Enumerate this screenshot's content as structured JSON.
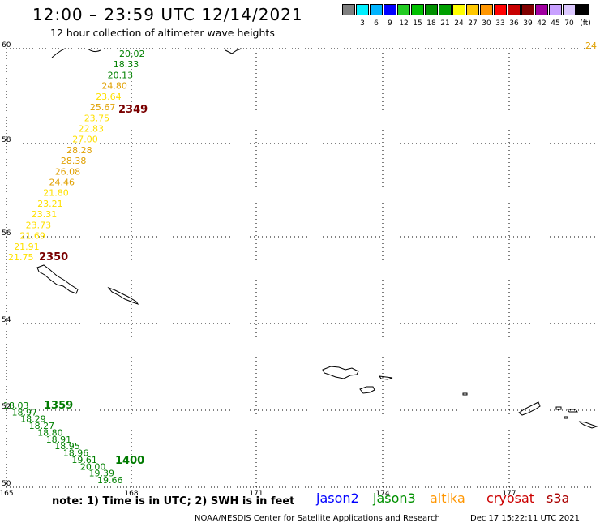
{
  "header": {
    "title": "12:00 – 23:59 UTC 12/14/2021",
    "subtitle": "12 hour collection of altimeter wave heights"
  },
  "scale": {
    "unit": "(ft)",
    "swatches": [
      {
        "color": "#7f7f7f",
        "label": ""
      },
      {
        "color": "#00f0ff",
        "label": "3"
      },
      {
        "color": "#00b4ff",
        "label": "6"
      },
      {
        "color": "#0000ff",
        "label": "9"
      },
      {
        "color": "#22cc22",
        "label": "12"
      },
      {
        "color": "#00c000",
        "label": "15"
      },
      {
        "color": "#009000",
        "label": "18"
      },
      {
        "color": "#00a000",
        "label": "21"
      },
      {
        "color": "#ffff00",
        "label": "24"
      },
      {
        "color": "#ffc800",
        "label": "27"
      },
      {
        "color": "#ff9600",
        "label": "30"
      },
      {
        "color": "#ff0000",
        "label": "33"
      },
      {
        "color": "#c80000",
        "label": "36"
      },
      {
        "color": "#800000",
        "label": "39"
      },
      {
        "color": "#a000a0",
        "label": "42"
      },
      {
        "color": "#c8a0ff",
        "label": "45"
      },
      {
        "color": "#dcc8ff",
        "label": "70"
      },
      {
        "color": "#000000",
        "label": ""
      }
    ]
  },
  "axes": {
    "lon_ticks": [
      "165",
      "168",
      "171",
      "174",
      "177"
    ],
    "lat_ticks": [
      "60",
      "58",
      "56",
      "54",
      "52",
      "50"
    ]
  },
  "passes": [
    {
      "label": "2349",
      "color": "#7a0000"
    },
    {
      "label": "2350",
      "color": "#7a0000"
    },
    {
      "label": "1359",
      "color": "#007a00"
    },
    {
      "label": "1400",
      "color": "#007a00"
    }
  ],
  "edge_value": {
    "text": "24",
    "color": "#e0a000"
  },
  "track_north": [
    {
      "v": "20.02",
      "c": "#008000"
    },
    {
      "v": "18.33",
      "c": "#008000"
    },
    {
      "v": "20.13",
      "c": "#008000"
    },
    {
      "v": "24.80",
      "c": "#e0a000"
    },
    {
      "v": "23.64",
      "c": "#ffe000"
    },
    {
      "v": "25.67",
      "c": "#e0a000"
    },
    {
      "v": "23.75",
      "c": "#ffe000"
    },
    {
      "v": "22.83",
      "c": "#ffe000"
    },
    {
      "v": "27.00",
      "c": "#ffe000"
    },
    {
      "v": "28.28",
      "c": "#e0a000"
    },
    {
      "v": "28.38",
      "c": "#e0a000"
    },
    {
      "v": "26.08",
      "c": "#e0a000"
    },
    {
      "v": "24.46",
      "c": "#e0a000"
    },
    {
      "v": "21.80",
      "c": "#ffe000"
    },
    {
      "v": "23.21",
      "c": "#ffe000"
    },
    {
      "v": "23.31",
      "c": "#ffe000"
    },
    {
      "v": "23.73",
      "c": "#ffe000"
    },
    {
      "v": "21.69",
      "c": "#ffe000"
    },
    {
      "v": "21.91",
      "c": "#ffe000"
    },
    {
      "v": "21.75",
      "c": "#ffe000"
    }
  ],
  "track_south": [
    {
      "v": "18.03",
      "c": "#008000"
    },
    {
      "v": "18.97",
      "c": "#008000"
    },
    {
      "v": "18.29",
      "c": "#008000"
    },
    {
      "v": "18.27",
      "c": "#008000"
    },
    {
      "v": "18.80",
      "c": "#008000"
    },
    {
      "v": "18.91",
      "c": "#008000"
    },
    {
      "v": "18.95",
      "c": "#008000"
    },
    {
      "v": "18.96",
      "c": "#008000"
    },
    {
      "v": "19.61",
      "c": "#008000"
    },
    {
      "v": "20.00",
      "c": "#008000"
    },
    {
      "v": "19.39",
      "c": "#008000"
    },
    {
      "v": "19.66",
      "c": "#008000"
    }
  ],
  "note": "note:  1) Time is in UTC;  2) SWH is in feet",
  "satellites": [
    {
      "name": "jason2",
      "color": "#0000ff"
    },
    {
      "name": "jason3",
      "color": "#009000"
    },
    {
      "name": "altika",
      "color": "#ff9600"
    },
    {
      "name": "cryosat",
      "color": "#cc0000"
    },
    {
      "name": "s3a",
      "color": "#aa0000"
    }
  ],
  "footer": {
    "credit": "NOAA/NESDIS Center for Satellite Applications and Research",
    "timestamp": "Dec 17 15:22:11 UTC 2021"
  }
}
